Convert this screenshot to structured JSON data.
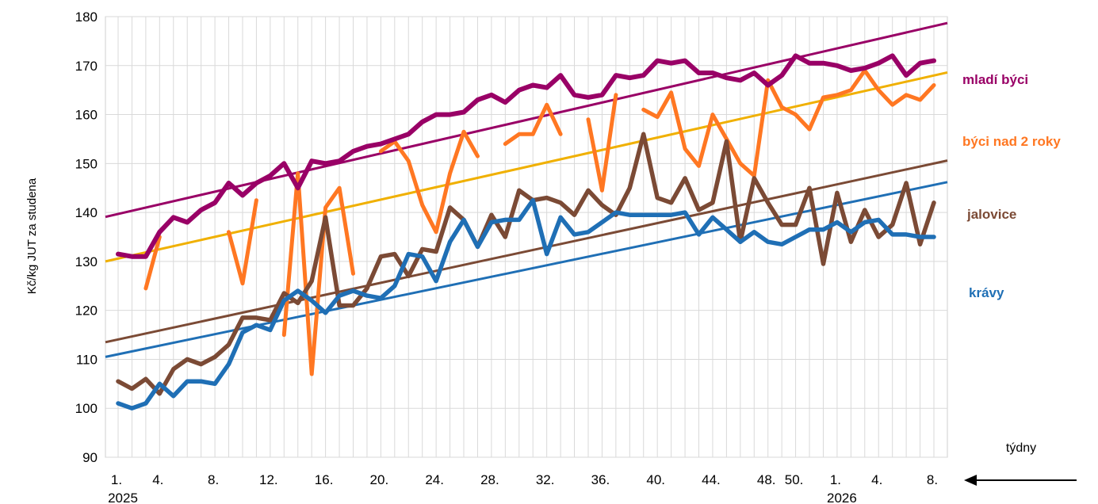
{
  "chart_data": {
    "type": "line",
    "ylabel": "Kč/kg JUT za studena",
    "xlabel": "týdny",
    "ylim": [
      90,
      180
    ],
    "yticks": [
      90,
      100,
      110,
      120,
      130,
      140,
      150,
      160,
      170,
      180
    ],
    "grid": true,
    "x": [
      "1",
      "2",
      "3",
      "4",
      "5",
      "6",
      "7",
      "8",
      "9",
      "10",
      "11",
      "12",
      "13",
      "14",
      "15",
      "16",
      "17",
      "18",
      "19",
      "20",
      "21",
      "22",
      "23",
      "24",
      "25",
      "26",
      "27",
      "28",
      "29",
      "30",
      "31",
      "32",
      "33",
      "34",
      "35",
      "36",
      "37",
      "38",
      "39",
      "40",
      "41",
      "42",
      "43",
      "44",
      "45",
      "46",
      "47",
      "48",
      "49",
      "50",
      "51",
      "52",
      "1",
      "2",
      "3",
      "4",
      "5",
      "6",
      "7",
      "8"
    ],
    "x_tick_labels": [
      {
        "index": 0,
        "label": "1."
      },
      {
        "index": 3,
        "label": "4."
      },
      {
        "index": 7,
        "label": "8."
      },
      {
        "index": 11,
        "label": "12."
      },
      {
        "index": 15,
        "label": "16."
      },
      {
        "index": 19,
        "label": "20."
      },
      {
        "index": 23,
        "label": "24."
      },
      {
        "index": 27,
        "label": "28."
      },
      {
        "index": 31,
        "label": "32."
      },
      {
        "index": 35,
        "label": "36."
      },
      {
        "index": 39,
        "label": "40."
      },
      {
        "index": 43,
        "label": "44."
      },
      {
        "index": 47,
        "label": "48."
      },
      {
        "index": 49,
        "label": "50."
      },
      {
        "index": 52,
        "label": "1."
      },
      {
        "index": 55,
        "label": "4."
      },
      {
        "index": 59,
        "label": "8."
      }
    ],
    "year_labels": [
      {
        "index": 0,
        "label": "2025"
      },
      {
        "index": 52,
        "label": "2026"
      }
    ],
    "series": [
      {
        "name": "mladí býci",
        "color": "#990066",
        "values": [
          131.5,
          131,
          131,
          136,
          139,
          138,
          140.5,
          142,
          146,
          143.5,
          146,
          147.5,
          150,
          145,
          150.5,
          150,
          150.5,
          152.5,
          153.5,
          154,
          155,
          156,
          158.5,
          160,
          160,
          160.5,
          163,
          164,
          162.5,
          165,
          166,
          165.5,
          168,
          164,
          163.5,
          164,
          168,
          167.5,
          168,
          171,
          170.5,
          171,
          168.5,
          168.5,
          167.5,
          167,
          168.5,
          166,
          168,
          172,
          170.5,
          170.5,
          170,
          169,
          169.5,
          170.5,
          172,
          168,
          170.5,
          171
        ],
        "trend": [
          139.1,
          178.7
        ],
        "trend_color": "#990066"
      },
      {
        "name": "býci nad 2 roky",
        "color": "#ff7722",
        "values": [
          null,
          null,
          124.5,
          135,
          null,
          null,
          null,
          null,
          136,
          125.5,
          142.5,
          null,
          115,
          148,
          107,
          141,
          145,
          127.5,
          null,
          152.5,
          154.5,
          150.5,
          141.5,
          136,
          148,
          156.5,
          151.5,
          null,
          154,
          156,
          156,
          162,
          156,
          null,
          159,
          144.5,
          164,
          null,
          161,
          159.5,
          164.5,
          153,
          149.5,
          160,
          155,
          150,
          147.5,
          167,
          161.5,
          160,
          157,
          163.5,
          164,
          165,
          169,
          165,
          162,
          164,
          163,
          166
        ],
        "trend": [
          130.0,
          168.6
        ],
        "trend_color": "#f0b000"
      },
      {
        "name": "jalovice",
        "color": "#7b4a35",
        "values": [
          105.5,
          104,
          106,
          103,
          108,
          110,
          109,
          110.5,
          113,
          118.5,
          118.5,
          118,
          123.5,
          121.5,
          126,
          139,
          121,
          121,
          124.5,
          131,
          131.5,
          127,
          132.5,
          132,
          141,
          138.5,
          133,
          139.5,
          135,
          144.5,
          142.5,
          143,
          142,
          139.5,
          144.5,
          141.5,
          139.5,
          145,
          156,
          143,
          142,
          147,
          140.5,
          142,
          154.5,
          134,
          147,
          142,
          137.5,
          137.5,
          145,
          129.5,
          144,
          134,
          140.5,
          135,
          137.5,
          146,
          133.5,
          142
        ],
        "trend": [
          113.5,
          150.6
        ],
        "trend_color": "#7b4a35"
      },
      {
        "name": "krávy",
        "color": "#1f6fb5",
        "values": [
          101,
          100,
          101,
          105,
          102.5,
          105.5,
          105.5,
          105,
          109,
          115.5,
          117,
          116,
          122,
          124,
          122,
          119.5,
          123,
          124,
          123,
          122.5,
          125,
          131.5,
          131,
          126,
          134,
          138.5,
          133,
          138,
          138.5,
          138.5,
          142.5,
          131.5,
          139,
          135.5,
          136,
          138,
          140,
          139.5,
          139.5,
          139.5,
          139.5,
          140,
          135.5,
          139,
          136.5,
          134,
          136,
          134,
          133.5,
          135,
          136.5,
          136.5,
          138,
          136,
          138,
          138.5,
          135.5,
          135.5,
          135,
          135
        ],
        "trend": [
          110.5,
          146.2
        ],
        "trend_color": "#1f6fb5"
      }
    ],
    "series_labels_placement": "right"
  }
}
